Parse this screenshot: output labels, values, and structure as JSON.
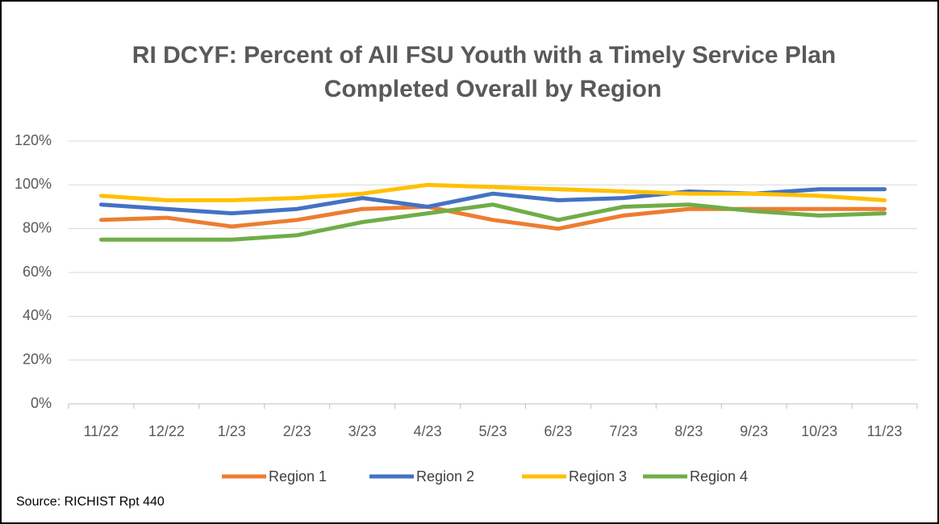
{
  "chart_data": {
    "type": "line",
    "title": "RI DCYF: Percent of All FSU Youth with a Timely Service Plan Completed Overall by Region",
    "title_lines": [
      "RI DCYF: Percent of All FSU Youth with a Timely Service Plan",
      "Completed Overall by Region"
    ],
    "source": "Source:  RICHIST Rpt 440",
    "categories": [
      "11/22",
      "12/22",
      "1/23",
      "2/23",
      "3/23",
      "4/23",
      "5/23",
      "6/23",
      "7/23",
      "8/23",
      "9/23",
      "10/23",
      "11/23"
    ],
    "series": [
      {
        "name": "Region 1",
        "color": "#ed7d31",
        "values": [
          84,
          85,
          81,
          84,
          89,
          90,
          84,
          80,
          86,
          89,
          89,
          89,
          89
        ]
      },
      {
        "name": "Region 2",
        "color": "#4472c4",
        "values": [
          91,
          89,
          87,
          89,
          94,
          90,
          96,
          93,
          94,
          97,
          96,
          98,
          98
        ]
      },
      {
        "name": "Region 3",
        "color": "#ffc000",
        "values": [
          95,
          93,
          93,
          94,
          96,
          100,
          99,
          98,
          97,
          96,
          96,
          95,
          93
        ]
      },
      {
        "name": "Region 4",
        "color": "#70ad47",
        "values": [
          75,
          75,
          75,
          77,
          83,
          87,
          91,
          84,
          90,
          91,
          88,
          86,
          87
        ]
      }
    ],
    "ylim": [
      0,
      120
    ],
    "yticks": [
      {
        "value": 0,
        "label": "0%"
      },
      {
        "value": 20,
        "label": "20%"
      },
      {
        "value": 40,
        "label": "40%"
      },
      {
        "value": 60,
        "label": "60%"
      },
      {
        "value": 80,
        "label": "80%"
      },
      {
        "value": 100,
        "label": "100%"
      },
      {
        "value": 120,
        "label": "120%"
      }
    ],
    "grid": true,
    "legend": "bottom"
  }
}
